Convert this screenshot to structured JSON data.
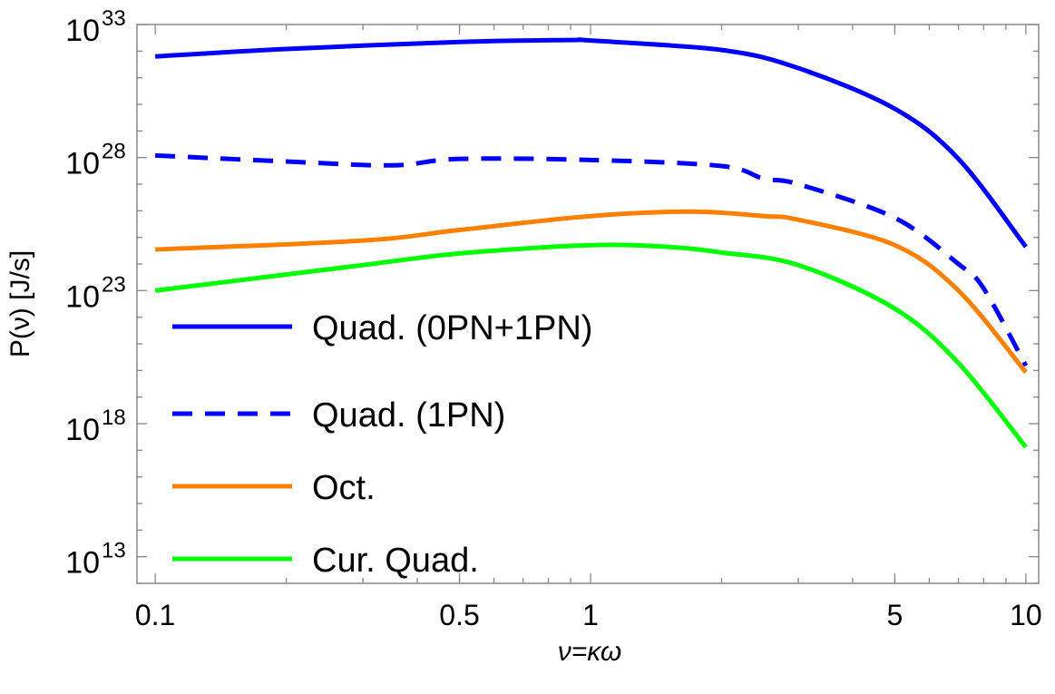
{
  "chart_data": {
    "type": "line",
    "title": "",
    "xlabel": "ν=κω",
    "ylabel": "P(ν) [J/s]",
    "xscale": "log",
    "yscale": "log",
    "xlim": [
      0.0908,
      10.7
    ],
    "ylim": [
      1000000000000.0,
      1e+33
    ],
    "x_ticks": [
      {
        "v": 0.1,
        "label": "0.1"
      },
      {
        "v": 0.5,
        "label": "0.5"
      },
      {
        "v": 1,
        "label": "1"
      },
      {
        "v": 5,
        "label": "5"
      },
      {
        "v": 10,
        "label": "10"
      }
    ],
    "y_ticks": [
      {
        "v": 10000000000000.0,
        "base": "10",
        "exp": "13"
      },
      {
        "v": 1e+18,
        "base": "10",
        "exp": "18"
      },
      {
        "v": 1e+23,
        "base": "10",
        "exp": "23"
      },
      {
        "v": 1e+28,
        "base": "10",
        "exp": "28"
      },
      {
        "v": 1e+33,
        "base": "10",
        "exp": "33"
      }
    ],
    "grid": false,
    "legend_placement": "bottom-left",
    "series": [
      {
        "name": "Quad. (0PN+1PN)",
        "color": "#0000ff",
        "dash": false,
        "x": [
          0.1,
          0.2,
          0.5,
          0.9,
          1,
          2,
          3,
          5,
          7,
          10
        ],
        "y": [
          6.3e+31,
          1.2e+32,
          2.2e+32,
          2.6e+32,
          2.5e+32,
          1.1e+32,
          2.3e+31,
          6.8e+29,
          8.9e+27,
          4.4e+24
        ]
      },
      {
        "name": "Quad. (1PN)",
        "color": "#0000ff",
        "dash": true,
        "x": [
          0.1,
          0.2,
          0.35,
          0.5,
          1,
          2,
          2.5,
          3,
          5,
          7,
          8,
          10
        ],
        "y": [
          1.2e+28,
          7.1e+27,
          5.1e+27,
          8.9e+27,
          8.1e+27,
          4.8e+27,
          1.6e+27,
          1e+27,
          5.4e+25,
          1e+24,
          1.2e+23,
          1.5e+20
        ]
      },
      {
        "name": "Oct.",
        "color": "#ff8000",
        "dash": false,
        "x": [
          0.1,
          0.3,
          0.5,
          1,
          1.7,
          2.5,
          3,
          5,
          7,
          10
        ],
        "y": [
          3.5e+24,
          7.6e+24,
          1.9e+25,
          6.3e+25,
          9.3e+25,
          6.3e+25,
          4.6e+25,
          5.1e+24,
          1e+23,
          8.5e+19
        ]
      },
      {
        "name": "Cur. Quad.",
        "color": "#00ff00",
        "dash": false,
        "x": [
          0.1,
          0.3,
          0.5,
          1,
          1.5,
          2,
          3,
          5,
          7,
          10
        ],
        "y": [
          1e+23,
          9.1e+23,
          2.5e+24,
          5.1e+24,
          4.4e+24,
          2.7e+24,
          9.1e+23,
          2.1e+22,
          1.9e+20,
          1.3e+17
        ]
      }
    ]
  }
}
